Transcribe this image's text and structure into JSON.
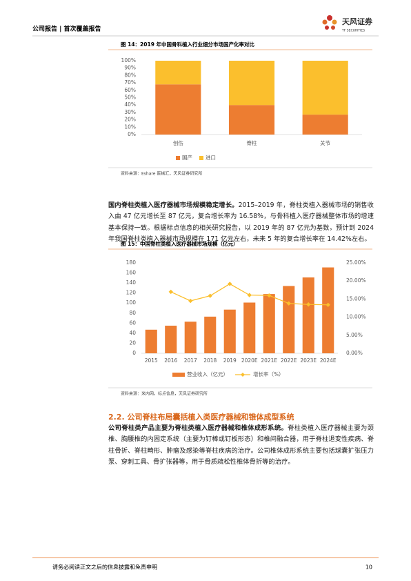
{
  "header": {
    "title": "公司报告 | 首次覆盖报告",
    "logo": "天风证券",
    "logo_en": "TF SECURITIES"
  },
  "chart_data": [
    {
      "type": "bar",
      "stacked": true,
      "title": "图 14：2019 年中国骨科植入行业细分市场国产化率对比",
      "categories": [
        "创伤",
        "脊柱",
        "关节"
      ],
      "series": [
        {
          "name": "国产",
          "color": "#ed7d31",
          "values": [
            68,
            40,
            27
          ]
        },
        {
          "name": "进口",
          "color": "#fbbf2d",
          "values": [
            32,
            60,
            73
          ]
        }
      ],
      "ylim": [
        0,
        100
      ],
      "yticks": [
        {
          "value": 0,
          "label": "0%"
        },
        {
          "value": 10,
          "label": "10%"
        },
        {
          "value": 20,
          "label": "20%"
        },
        {
          "value": 30,
          "label": "30%"
        },
        {
          "value": 40,
          "label": "40%"
        },
        {
          "value": 50,
          "label": "50%"
        },
        {
          "value": 60,
          "label": "60%"
        },
        {
          "value": 70,
          "label": "70%"
        },
        {
          "value": 80,
          "label": "80%"
        },
        {
          "value": 90,
          "label": "90%"
        },
        {
          "value": 100,
          "label": "100%"
        }
      ],
      "grid": false,
      "legend": "bottom",
      "source": "资料来源：Eshare 医械汇，天风证券研究所"
    },
    {
      "type": "bar",
      "title": "图 15：中国脊柱类植入医疗器械市场规模（亿元）",
      "categories": [
        "2015",
        "2016",
        "2017",
        "2018",
        "2019",
        "2020E",
        "2021E",
        "2022E",
        "2023E",
        "2024E"
      ],
      "series": [
        {
          "name": "营业收入（亿元）",
          "color": "#ed7d31",
          "values": [
            47,
            55,
            63,
            73,
            87,
            101,
            118,
            134,
            151,
            171
          ]
        },
        {
          "name": "增长率（%）",
          "color": "#fbbf2d",
          "type": "line",
          "axis": "y2",
          "values": [
            null,
            17.0,
            14.5,
            15.9,
            19.2,
            16.1,
            16.0,
            13.8,
            13.5,
            13.4
          ]
        }
      ],
      "ylim": [
        0,
        180
      ],
      "yticks": [
        0,
        20,
        40,
        60,
        80,
        100,
        120,
        140,
        160,
        180
      ],
      "y2lim": [
        0,
        25
      ],
      "y2ticks": [
        {
          "value": 0,
          "label": "0.00%"
        },
        {
          "value": 5,
          "label": "5.00%"
        },
        {
          "value": 10,
          "label": "10.00%"
        },
        {
          "value": 15,
          "label": "15.00%"
        },
        {
          "value": 20,
          "label": "20.00%"
        },
        {
          "value": 25,
          "label": "25.00%"
        }
      ],
      "grid": false,
      "legend": "bottom",
      "source": "资料来源：米内网，标点信息，天风证券研究所"
    }
  ],
  "paragraph1": {
    "lead": "国内脊柱类植入医疗器械市场规模稳定增长。",
    "body": "2015–2019 年，脊柱类植入器械市场的销售收入由 47 亿元增长至 87 亿元，复合增长率为 16.58%，与骨科植入医疗器械整体市场的增速基本保持一致。根据标点信息的相关研究报告，以 2019 年的 87 亿元为基数，预计到 2024 年我国脊柱类植入器械市场规模在 171 亿元左右，未来 5 年的复合增长率在 14.42%左右。"
  },
  "section": {
    "title": "2.2. 公司脊柱布局囊括植入类医疗器械和锥体成型系统"
  },
  "paragraph2": {
    "lead": "公司脊柱类产品主要为脊柱类植入医疗器械和椎体成形系统。",
    "body": "脊柱类植入医疗器械主要为颈椎、胸腰椎的内固定系统（主要为钉棒或钉板形态）和椎间融合器，用于脊柱退变性疾病、脊柱骨折、脊柱畸形、肿瘤及感染等脊柱疾病的治疗。公司椎体成形系统主要包括球囊扩张压力泵、穿刺工具、骨扩张器等，用于骨质疏松性椎体骨折等的治疗。"
  },
  "footer": {
    "disclaimer": "请务必阅读正文之后的信息披露和免责申明",
    "page": "10"
  }
}
